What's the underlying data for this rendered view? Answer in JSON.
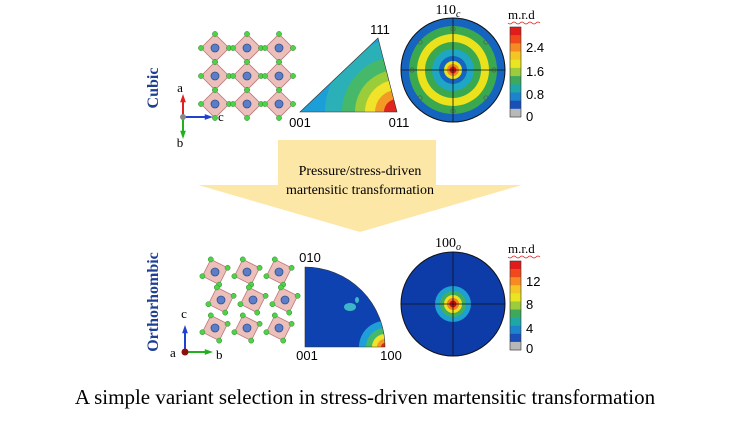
{
  "panels": [
    {
      "phase": "Cubic",
      "axes": [
        "a",
        "c",
        "b"
      ],
      "ipf_labels": [
        "111",
        "001",
        "011"
      ],
      "pole_figure": {
        "label": "110",
        "subscript": "c"
      },
      "colorbar": {
        "title": "m.r.d",
        "ticks": [
          "2.4",
          "1.6",
          "0.8",
          "0"
        ]
      }
    },
    {
      "phase": "Orthorhombic",
      "axes": [
        "c",
        "a",
        "b"
      ],
      "ipf_labels": [
        "010",
        "001",
        "100"
      ],
      "pole_figure": {
        "label": "100",
        "subscript": "o"
      },
      "colorbar": {
        "title": "m.r.d",
        "ticks": [
          "12",
          "8",
          "4",
          "0"
        ]
      }
    }
  ],
  "arrow": {
    "lines": [
      "Pressure/stress-driven",
      "martensitic transformation"
    ]
  },
  "caption": "A simple variant selection in stress-driven martensitic transformation"
}
